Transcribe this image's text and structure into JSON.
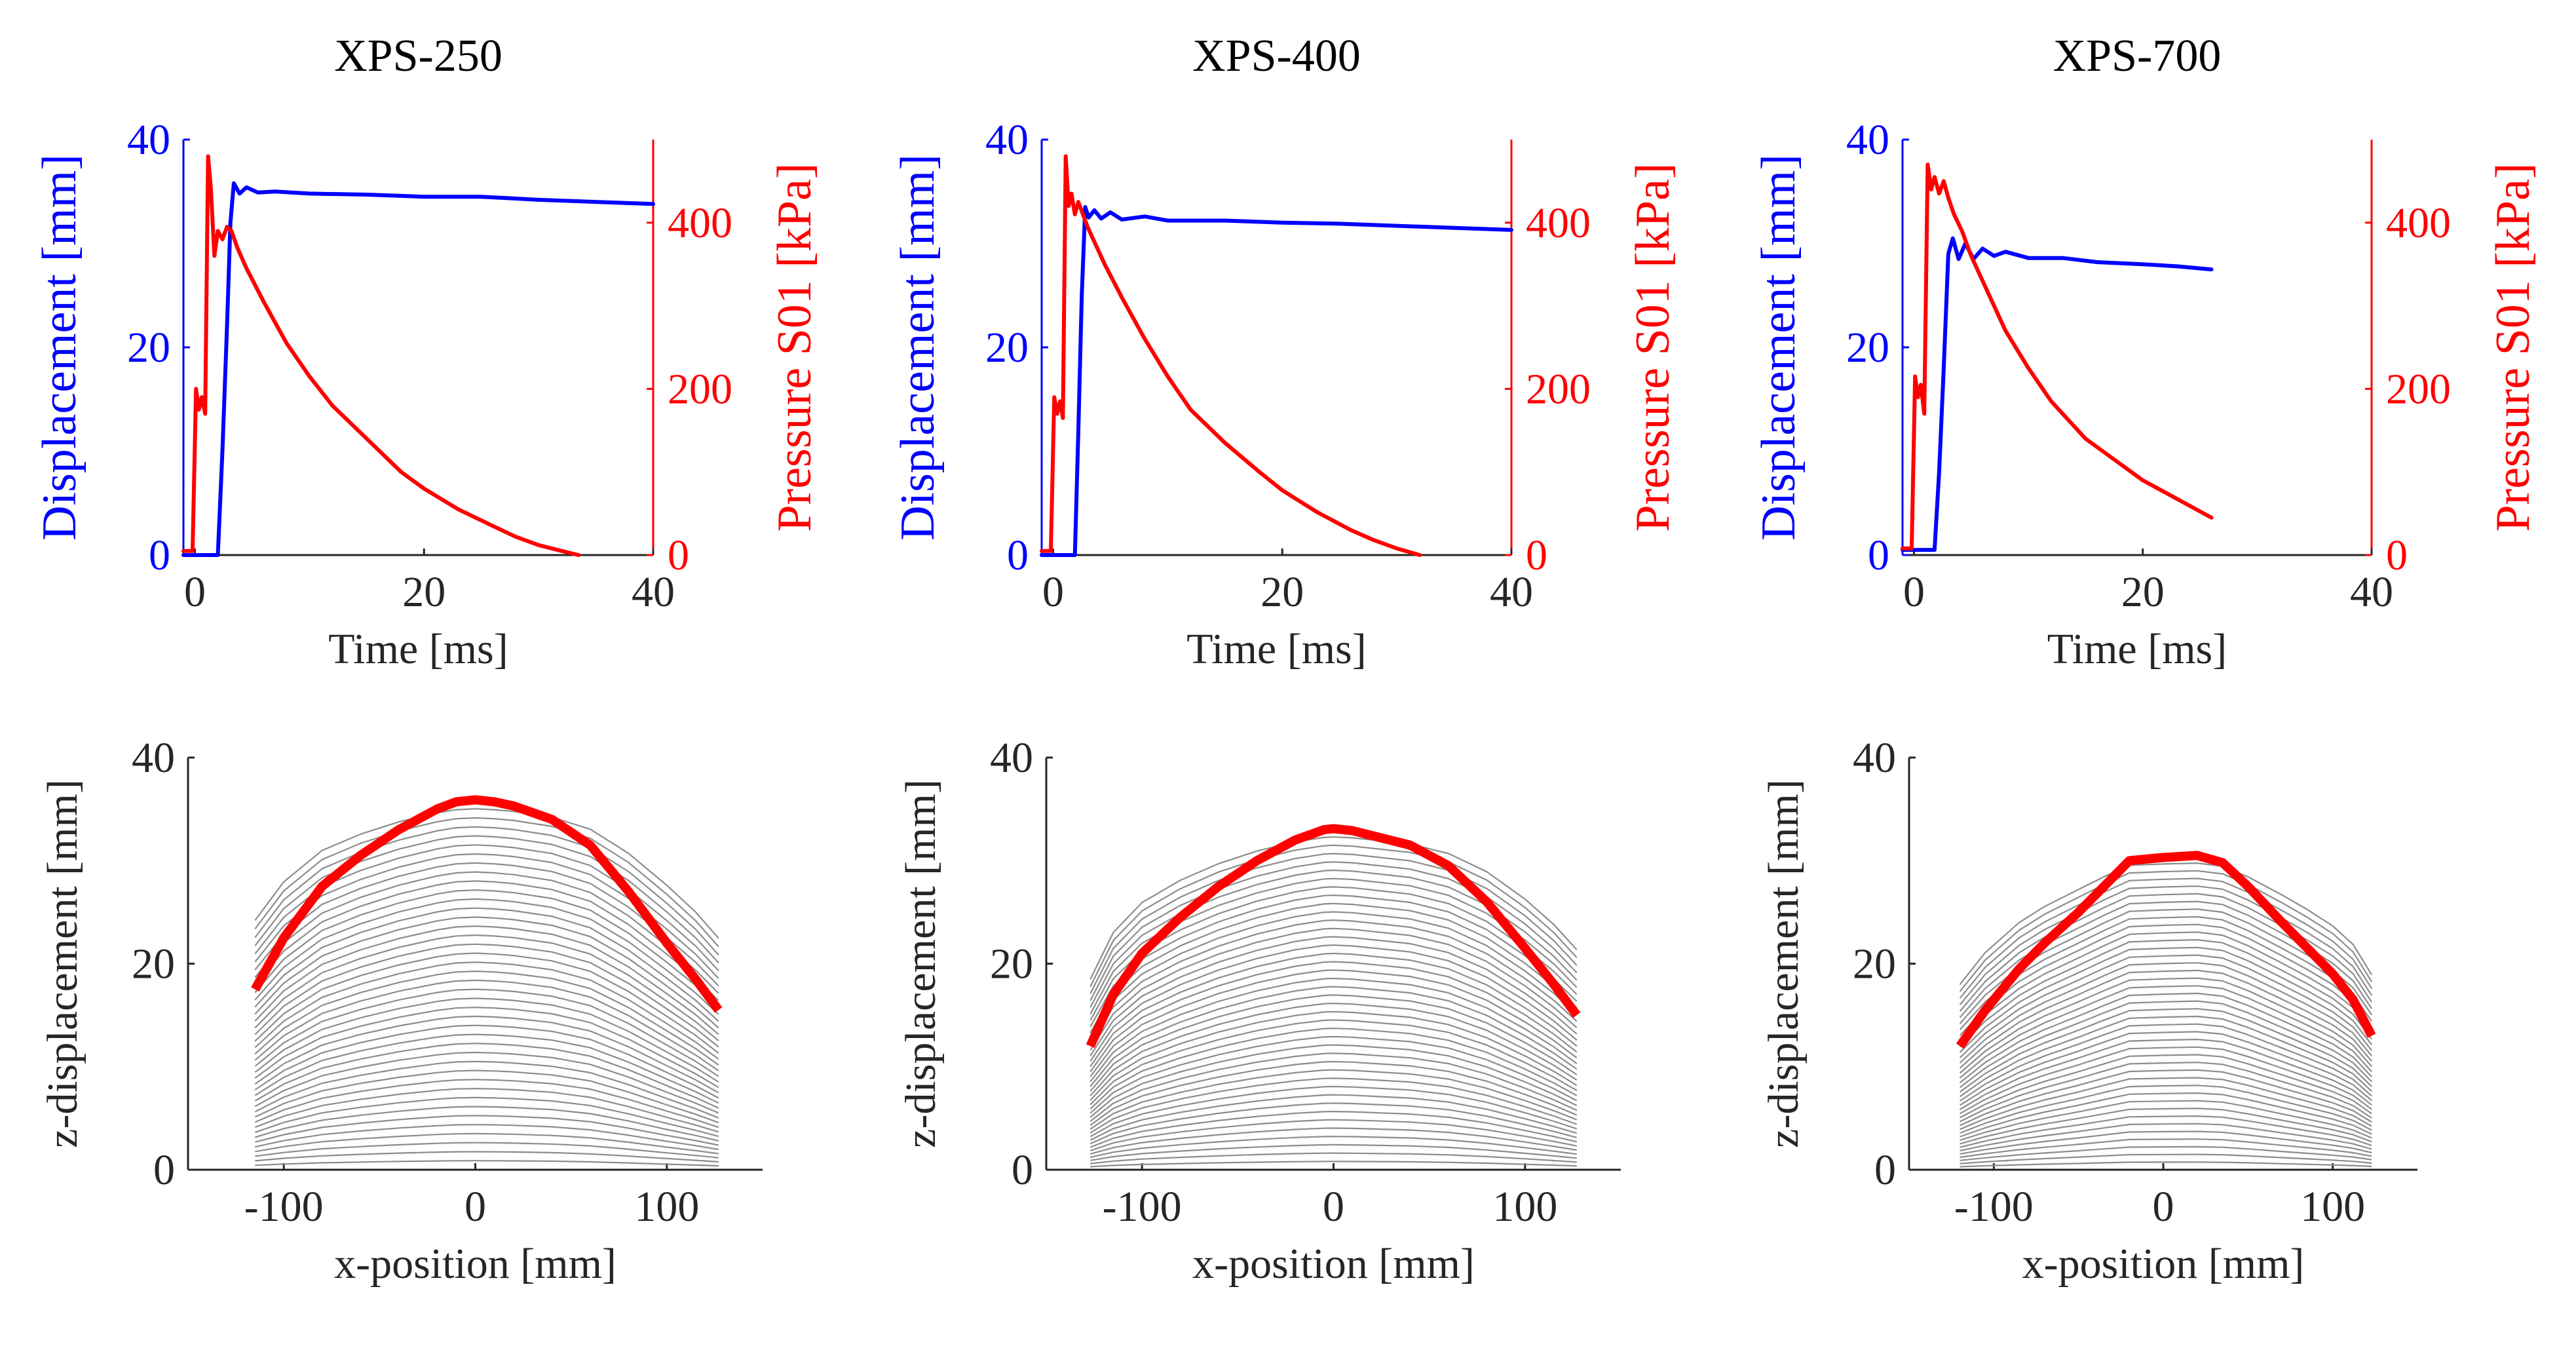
{
  "figure": {
    "colors": {
      "displacement": "#0000ff",
      "pressure": "#ff0000",
      "axis": "#262626",
      "profile": "#8c8c8c",
      "final_profile": "#ff0000"
    }
  },
  "chart_data": [
    {
      "type": "line",
      "panel": "top-1",
      "title": "XPS-250",
      "xlabel": "Time [ms]",
      "ylabel_left": "Displacement [mm]",
      "ylabel_right": "Pressure S01 [kPa]",
      "xlim": [
        -1,
        40
      ],
      "xticks": [
        0,
        20,
        40
      ],
      "ylim_left": [
        0,
        40
      ],
      "yticks_left": [
        0,
        20,
        40
      ],
      "ylim_right": [
        0,
        500
      ],
      "yticks_right": [
        0,
        200,
        400
      ],
      "series": [
        {
          "name": "Displacement",
          "axis": "left",
          "color": "#0000ff",
          "x": [
            -1,
            2.0,
            2.4,
            2.8,
            3.1,
            3.4,
            3.9,
            4.5,
            5.5,
            7,
            10,
            15,
            20,
            25,
            30,
            35,
            40
          ],
          "y": [
            0,
            0,
            10,
            22,
            32,
            35.8,
            34.8,
            35.4,
            34.9,
            35.0,
            34.8,
            34.7,
            34.5,
            34.5,
            34.2,
            34.0,
            33.8
          ]
        },
        {
          "name": "Pressure S01",
          "axis": "right",
          "color": "#ff0000",
          "x": [
            -1,
            -0.2,
            0.1,
            0.35,
            0.6,
            0.9,
            1.15,
            1.4,
            1.7,
            2.0,
            2.4,
            2.8,
            3.2,
            3.7,
            4.5,
            6,
            8,
            10,
            12,
            15,
            18,
            20,
            23,
            26,
            28,
            30,
            32,
            33.5
          ],
          "y": [
            5,
            5,
            200,
            175,
            190,
            170,
            480,
            440,
            360,
            390,
            380,
            395,
            390,
            370,
            345,
            305,
            255,
            215,
            180,
            140,
            100,
            80,
            55,
            35,
            22,
            12,
            5,
            0
          ]
        }
      ]
    },
    {
      "type": "line",
      "panel": "top-2",
      "title": "XPS-400",
      "xlabel": "Time [ms]",
      "ylabel_left": "Displacement [mm]",
      "ylabel_right": "Pressure S01 [kPa]",
      "xlim": [
        -1,
        40
      ],
      "xticks": [
        0,
        20,
        40
      ],
      "ylim_left": [
        0,
        40
      ],
      "yticks_left": [
        0,
        20,
        40
      ],
      "ylim_right": [
        0,
        500
      ],
      "yticks_right": [
        0,
        200,
        400
      ],
      "series": [
        {
          "name": "Displacement",
          "axis": "left",
          "color": "#0000ff",
          "x": [
            -1,
            1.9,
            2.2,
            2.5,
            2.8,
            3.1,
            3.6,
            4.2,
            5,
            6,
            8,
            10,
            15,
            20,
            25,
            30,
            35,
            40
          ],
          "y": [
            0,
            0,
            12,
            25,
            33.5,
            32.5,
            33.2,
            32.4,
            33.0,
            32.3,
            32.6,
            32.2,
            32.2,
            32.0,
            31.9,
            31.7,
            31.5,
            31.3
          ]
        },
        {
          "name": "Pressure S01",
          "axis": "right",
          "color": "#ff0000",
          "x": [
            -1,
            -0.2,
            0.1,
            0.35,
            0.6,
            0.85,
            1.1,
            1.35,
            1.6,
            1.9,
            2.2,
            2.6,
            3.0,
            3.5,
            4.5,
            6,
            8,
            10,
            12,
            15,
            18,
            20,
            23,
            26,
            28,
            30,
            32
          ],
          "y": [
            5,
            5,
            190,
            170,
            185,
            165,
            480,
            420,
            435,
            410,
            425,
            410,
            395,
            380,
            350,
            310,
            260,
            215,
            175,
            135,
            100,
            78,
            52,
            30,
            18,
            8,
            0
          ]
        }
      ]
    },
    {
      "type": "line",
      "panel": "top-3",
      "title": "XPS-700",
      "xlabel": "Time [ms]",
      "ylabel_left": "Displacement [mm]",
      "ylabel_right": "Pressure S01 [kPa]",
      "xlim": [
        -1,
        40
      ],
      "xticks": [
        0,
        20,
        40
      ],
      "ylim_left": [
        0,
        40
      ],
      "yticks_left": [
        0,
        20,
        40
      ],
      "ylim_right": [
        0,
        500
      ],
      "yticks_right": [
        0,
        200,
        400
      ],
      "series": [
        {
          "name": "Displacement",
          "axis": "left",
          "color": "#0000ff",
          "x": [
            -1,
            1.8,
            2.2,
            2.6,
            3.0,
            3.4,
            3.9,
            4.5,
            5.2,
            6,
            7,
            8,
            10,
            13,
            16,
            20,
            23,
            26
          ],
          "y": [
            0.5,
            0.5,
            8,
            18,
            29,
            30.5,
            28.5,
            30,
            28.5,
            29.5,
            28.8,
            29.2,
            28.6,
            28.6,
            28.2,
            28.0,
            27.8,
            27.5
          ]
        },
        {
          "name": "Pressure S01",
          "axis": "right",
          "color": "#ff0000",
          "x": [
            -1,
            -0.2,
            0.1,
            0.35,
            0.6,
            0.9,
            1.2,
            1.5,
            1.8,
            2.2,
            2.6,
            3.0,
            3.5,
            4.2,
            5,
            6,
            8,
            10,
            12,
            15,
            18,
            20,
            22,
            24,
            26
          ],
          "y": [
            8,
            8,
            215,
            190,
            205,
            170,
            470,
            440,
            455,
            435,
            450,
            430,
            410,
            390,
            360,
            330,
            270,
            225,
            185,
            140,
            110,
            90,
            75,
            60,
            45
          ]
        }
      ]
    },
    {
      "type": "line",
      "panel": "bottom-1",
      "xlabel": "x-position [mm]",
      "ylabel": "z-displacement [mm]",
      "xlim": [
        -150,
        150
      ],
      "xticks": [
        -100,
        0,
        100
      ],
      "ylim": [
        0,
        40
      ],
      "yticks": [
        0,
        20,
        40
      ],
      "profile_count": 40,
      "final_profile": {
        "x": [
          -115,
          -100,
          -80,
          -60,
          -40,
          -20,
          -10,
          0,
          10,
          20,
          40,
          60,
          80,
          100,
          115,
          127
        ],
        "y": [
          17.5,
          22.5,
          27.5,
          30.5,
          33.0,
          35.0,
          35.7,
          35.9,
          35.7,
          35.3,
          34.0,
          31.5,
          27.0,
          22.0,
          18.5,
          15.5
        ]
      }
    },
    {
      "type": "line",
      "panel": "bottom-2",
      "xlabel": "x-position [mm]",
      "ylabel": "z-displacement [mm]",
      "xlim": [
        -150,
        150
      ],
      "xticks": [
        -100,
        0,
        100
      ],
      "ylim": [
        0,
        40
      ],
      "yticks": [
        0,
        20,
        40
      ],
      "profile_count": 40,
      "final_profile": {
        "x": [
          -127,
          -115,
          -100,
          -80,
          -60,
          -40,
          -20,
          -5,
          0,
          10,
          25,
          40,
          60,
          80,
          100,
          115,
          127
        ],
        "y": [
          12.0,
          17.0,
          21.0,
          24.5,
          27.5,
          30.0,
          32.0,
          33.0,
          33.1,
          32.9,
          32.2,
          31.5,
          29.5,
          26.0,
          21.5,
          18.0,
          15.0
        ]
      }
    },
    {
      "type": "line",
      "panel": "bottom-3",
      "xlabel": "x-position [mm]",
      "ylabel": "z-displacement [mm]",
      "xlim": [
        -150,
        150
      ],
      "xticks": [
        -100,
        0,
        100
      ],
      "ylim": [
        0,
        40
      ],
      "yticks": [
        0,
        20,
        40
      ],
      "profile_count": 40,
      "final_profile": {
        "x": [
          -120,
          -105,
          -85,
          -70,
          -50,
          -35,
          -20,
          0,
          20,
          35,
          50,
          70,
          85,
          100,
          112,
          123
        ],
        "y": [
          12.0,
          15.5,
          19.5,
          22.0,
          25.0,
          27.5,
          30.0,
          30.3,
          30.5,
          29.8,
          27.5,
          24.0,
          21.5,
          19.0,
          16.5,
          13.0
        ]
      }
    }
  ]
}
